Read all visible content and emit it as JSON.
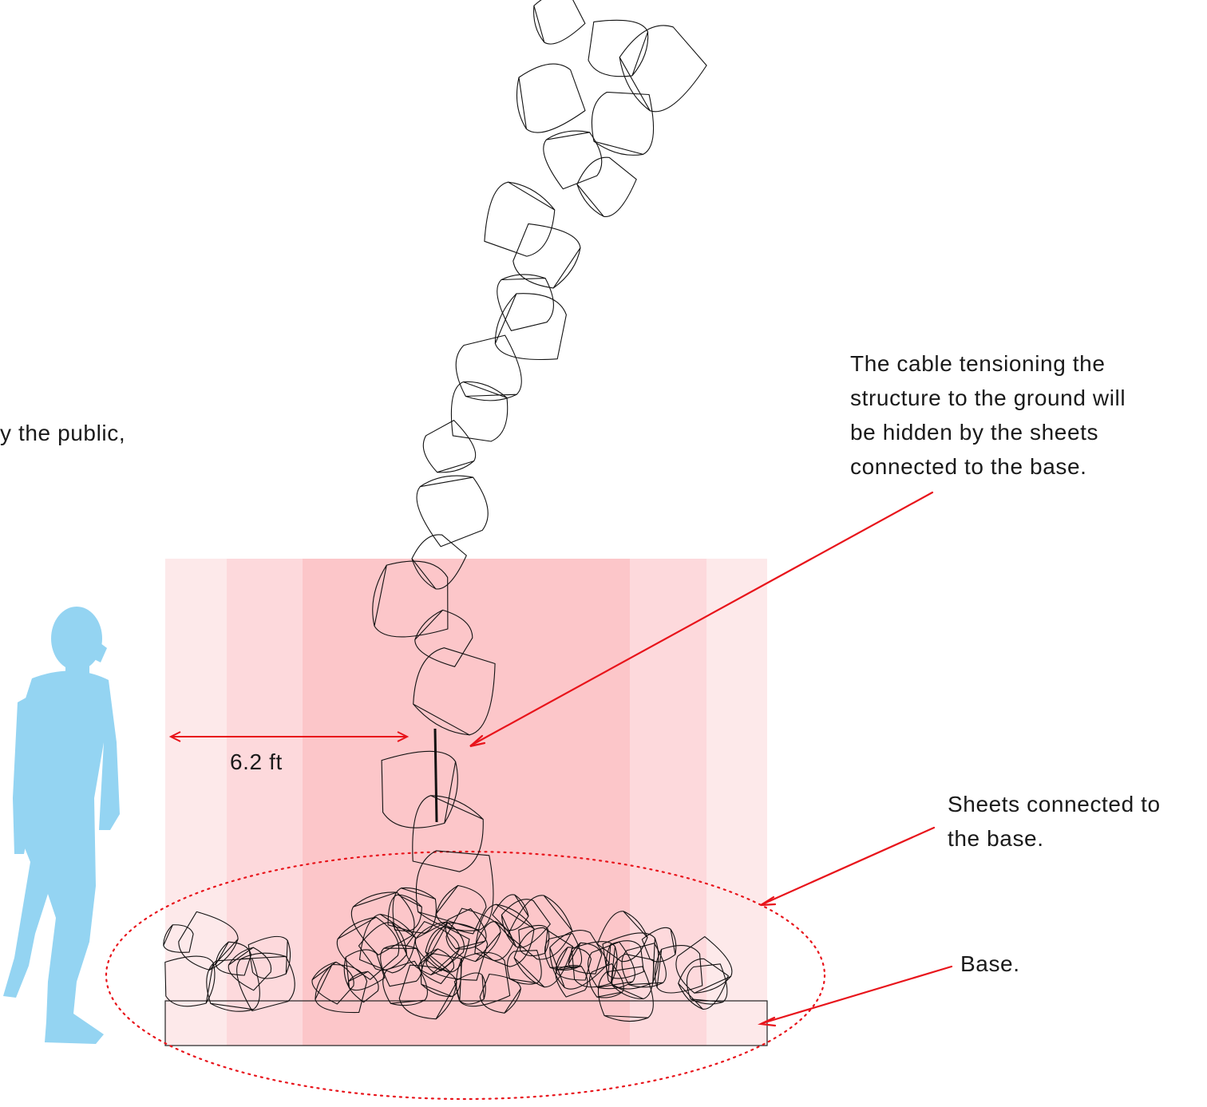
{
  "annotations": {
    "cable_note_lines": [
      "The cable tensioning the",
      "structure to the ground will",
      "be hidden by the sheets",
      "connected to the base."
    ],
    "sheets_note_lines": [
      "Sheets connected to",
      "the base."
    ],
    "base_note": "Base.",
    "left_note_fragment": "y the public,",
    "dimension_label": "6.2 ft"
  },
  "colors": {
    "zone_outer": "#fde9ea",
    "zone_middle": "#fdd9dc",
    "zone_inner": "#fcc6c9",
    "accent_red": "#e8141b",
    "figure_blue": "#94d4f2",
    "sheet_outline": "#111111"
  },
  "icons": {
    "person": "person-silhouette-icon"
  }
}
